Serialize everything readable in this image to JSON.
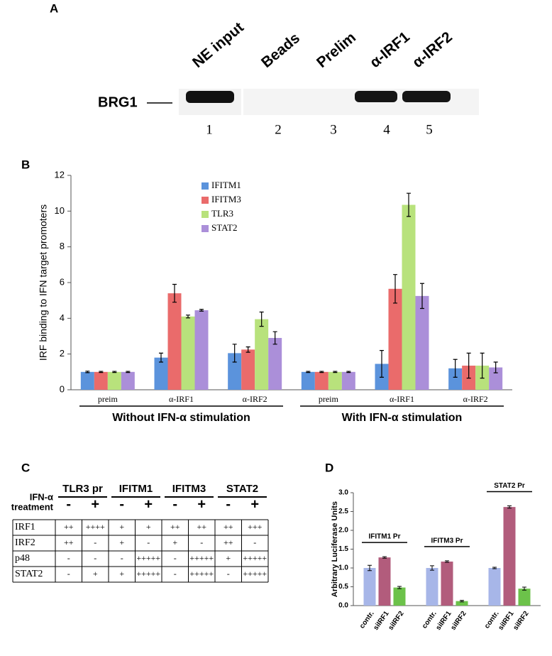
{
  "gel": {
    "panel_label": "A",
    "protein": "BRG1",
    "lanes": [
      "NE input",
      "Beads",
      "Prelim",
      "α-IRF1",
      "α-IRF2"
    ],
    "lane_numbers": [
      "1",
      "2",
      "3",
      "4",
      "5"
    ]
  },
  "chart_data": [
    {
      "type": "bar",
      "panel_label": "B",
      "y_label": "IRF binding to IFN target promoters",
      "categories": [
        "preim",
        "α-IRF1",
        "α-IRF2",
        "preim",
        "α-IRF1",
        "α-IRF2"
      ],
      "group_labels": [
        "Without IFN-α stimulation",
        "With IFN-α stimulation"
      ],
      "series": [
        {
          "name": "IFITM1",
          "color": "#5b93dc",
          "values": [
            1,
            1.8,
            2.05,
            1,
            1.45,
            1.2
          ],
          "errors": [
            0.04,
            0.25,
            0.5,
            0.03,
            0.75,
            0.5
          ]
        },
        {
          "name": "IFITM3",
          "color": "#ea6b6b",
          "values": [
            1,
            5.4,
            2.25,
            1,
            5.65,
            1.35
          ],
          "errors": [
            0.03,
            0.5,
            0.15,
            0.03,
            0.8,
            0.7
          ]
        },
        {
          "name": "TLR3",
          "color": "#b8e27c",
          "values": [
            1,
            4.1,
            3.95,
            1,
            10.35,
            1.35
          ],
          "errors": [
            0.03,
            0.08,
            0.4,
            0.03,
            0.65,
            0.7
          ]
        },
        {
          "name": "STAT2",
          "color": "#ab8fd9",
          "values": [
            1,
            4.45,
            2.9,
            1,
            5.25,
            1.25
          ],
          "errors": [
            0.03,
            0.05,
            0.35,
            0.03,
            0.7,
            0.3
          ]
        }
      ],
      "ylim": [
        0,
        12
      ],
      "yticks": [
        0,
        2,
        4,
        6,
        8,
        10,
        12
      ]
    },
    {
      "type": "bar",
      "panel_label": "D",
      "y_label": "Arbitrary Luciferase Units",
      "categories": [
        "IFITM1 Pr",
        "IFITM3 Pr",
        "STAT2 Pr"
      ],
      "series": [
        {
          "name": "contr.",
          "color": "#a7b6e8",
          "values": [
            1.0,
            1.0,
            1.0
          ],
          "errors": [
            0.07,
            0.06,
            0.02
          ]
        },
        {
          "name": "siIRF1",
          "color": "#b25c7c",
          "values": [
            1.28,
            1.17,
            2.62
          ],
          "errors": [
            0.02,
            0.02,
            0.03
          ]
        },
        {
          "name": "siIRF2",
          "color": "#6cc24a",
          "values": [
            0.48,
            0.12,
            0.45
          ],
          "errors": [
            0.03,
            0.02,
            0.04
          ]
        }
      ],
      "ylim": [
        0,
        3
      ],
      "yticks": [
        {
          "value": 0,
          "label": "0.0"
        },
        0.5,
        {
          "value": 1,
          "label": "1.0"
        },
        1.5,
        {
          "value": 2,
          "label": "2.0"
        },
        2.5,
        {
          "value": 3,
          "label": "3.0"
        }
      ]
    }
  ],
  "table": {
    "panel_label": "C",
    "genes": [
      "TLR3 pr",
      "IFITM1",
      "IFITM3",
      "STAT2"
    ],
    "treatment_label": [
      "IFN-α",
      "treatment"
    ],
    "treatment": [
      "-",
      "+",
      "-",
      "+",
      "-",
      "+",
      "-",
      "+"
    ],
    "rows": [
      [
        "IRF1",
        "++",
        "++++",
        "+",
        "+",
        "++",
        "++",
        "++",
        "+++"
      ],
      [
        "IRF2",
        "++",
        "-",
        "+",
        "-",
        "+",
        "-",
        "++",
        "-"
      ],
      [
        "p48",
        "-",
        "-",
        "-",
        "+++++",
        "-",
        "+++++",
        "+",
        "+++++"
      ],
      [
        "STAT2",
        "-",
        "+",
        "+",
        "+++++",
        "-",
        "+++++",
        "-",
        "+++++"
      ]
    ]
  }
}
